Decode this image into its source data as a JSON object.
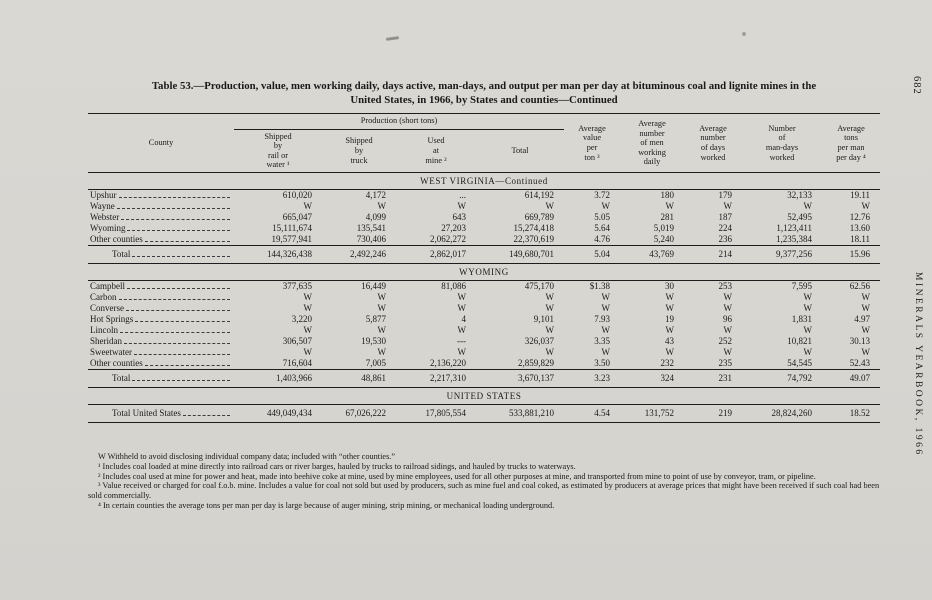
{
  "page": {
    "number": "682",
    "sidebar_text": "MINERALS YEARBOOK, 1966"
  },
  "table": {
    "title_line1": "Table 53.—Production, value, men working daily, days active, man-days, and output per man per day at bituminous coal and lignite mines in the",
    "title_line2": "United States, in 1966, by States and counties—Continued",
    "group_header": "Production (short tons)",
    "headers": {
      "county": "County",
      "production": [
        "Shipped\nby\nrail or\nwater ¹",
        "Shipped\nby\ntruck",
        "Used\nat\nmine ²",
        "Total"
      ],
      "others": [
        "Average\nvalue\nper\nton ³",
        "Average\nnumber\nof men\nworking\ndaily",
        "Average\nnumber\nof days\nworked",
        "Number\nof\nman-days\nworked",
        "Average\ntons\nper man\nper day ⁴"
      ]
    },
    "sections": [
      {
        "heading": "WEST VIRGINIA—Continued",
        "rows": [
          [
            "Upshur",
            "610,020",
            "4,172",
            "...",
            "614,192",
            "3.72",
            "180",
            "179",
            "32,133",
            "19.11"
          ],
          [
            "Wayne",
            "W",
            "W",
            "W",
            "W",
            "W",
            "W",
            "W",
            "W",
            "W"
          ],
          [
            "Webster",
            "665,047",
            "4,099",
            "643",
            "669,789",
            "5.05",
            "281",
            "187",
            "52,495",
            "12.76"
          ],
          [
            "Wyoming",
            "15,111,674",
            "135,541",
            "27,203",
            "15,274,418",
            "5.64",
            "5,019",
            "224",
            "1,123,411",
            "13.60"
          ],
          [
            "Other counties",
            "19,577,941",
            "730,406",
            "2,062,272",
            "22,370,619",
            "4.76",
            "5,240",
            "236",
            "1,235,384",
            "18.11"
          ]
        ],
        "total": [
          "Total",
          "144,326,438",
          "2,492,246",
          "2,862,017",
          "149,680,701",
          "5.04",
          "43,769",
          "214",
          "9,377,256",
          "15.96"
        ]
      },
      {
        "heading": "WYOMING",
        "rows": [
          [
            "Campbell",
            "377,635",
            "16,449",
            "81,086",
            "475,170",
            "$1.38",
            "30",
            "253",
            "7,595",
            "62.56"
          ],
          [
            "Carbon",
            "W",
            "W",
            "W",
            "W",
            "W",
            "W",
            "W",
            "W",
            "W"
          ],
          [
            "Converse",
            "W",
            "W",
            "W",
            "W",
            "W",
            "W",
            "W",
            "W",
            "W"
          ],
          [
            "Hot Springs",
            "3,220",
            "5,877",
            "4",
            "9,101",
            "7.93",
            "19",
            "96",
            "1,831",
            "4.97"
          ],
          [
            "Lincoln",
            "W",
            "W",
            "W",
            "W",
            "W",
            "W",
            "W",
            "W",
            "W"
          ],
          [
            "Sheridan",
            "306,507",
            "19,530",
            "---",
            "326,037",
            "3.35",
            "43",
            "252",
            "10,821",
            "30.13"
          ],
          [
            "Sweetwater",
            "W",
            "W",
            "W",
            "W",
            "W",
            "W",
            "W",
            "W",
            "W"
          ],
          [
            "Other counties",
            "716,604",
            "7,005",
            "2,136,220",
            "2,859,829",
            "3.50",
            "232",
            "235",
            "54,545",
            "52.43"
          ]
        ],
        "total": [
          "Total",
          "1,403,966",
          "48,861",
          "2,217,310",
          "3,670,137",
          "3.23",
          "324",
          "231",
          "74,792",
          "49.07"
        ]
      },
      {
        "heading": "UNITED STATES",
        "rows": [],
        "total": [
          "Total United States",
          "449,049,434",
          "67,026,222",
          "17,805,554",
          "533,881,210",
          "4.54",
          "131,752",
          "219",
          "28,824,260",
          "18.52"
        ]
      }
    ],
    "footnotes": [
      "W Withheld to avoid disclosing individual company data; included with “other counties.”",
      "¹ Includes coal loaded at mine directly into railroad cars or river barges, hauled by trucks to railroad sidings, and hauled by trucks to waterways.",
      "² Includes coal used at mine for power and heat, made into beehive coke at mine, used by mine employees, used for all other purposes at mine, and transported from mine to point of use by conveyor, tram, or pipeline.",
      "³ Value received or charged for coal f.o.b. mine.  Includes a value for coal not sold but used by producers, such as mine fuel and coal coked, as estimated by producers at average prices that might have been received if such coal had been sold commercially.",
      "⁴ In certain counties the average tons per man per day is large because of auger mining, strip mining, or mechanical loading underground."
    ]
  }
}
